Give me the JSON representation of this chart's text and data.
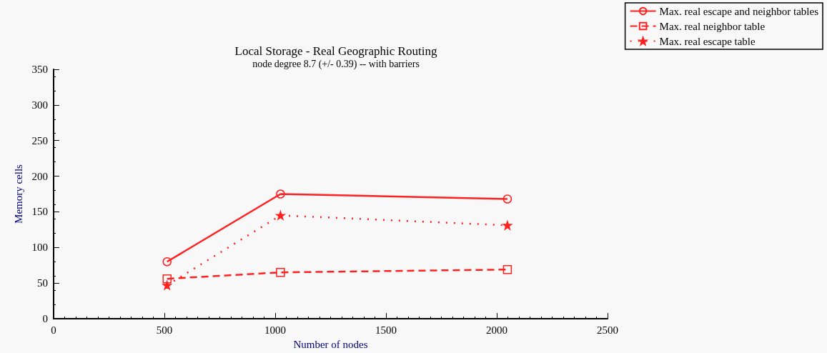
{
  "chart_data": {
    "type": "line",
    "title": "Local Storage - Real Geographic Routing",
    "subtitle": "node degree 8.7 (+/- 0.39) -- with barriers",
    "xlabel": "Number of nodes",
    "ylabel": "Memory cells",
    "x": [
      512,
      1024,
      2048
    ],
    "series": [
      {
        "name": "Max. real escape and neighbor tables",
        "color": "#ff2020",
        "values": [
          80,
          175,
          168
        ],
        "marker": "circle",
        "line_style": "solid"
      },
      {
        "name": "Max. real neighbor table",
        "color": "#ff2020",
        "values": [
          56,
          65,
          69
        ],
        "marker": "square",
        "line_style": "dashed"
      },
      {
        "name": "Max. real escape table",
        "color": "#ff2020",
        "values": [
          47,
          145,
          131
        ],
        "marker": "star",
        "line_style": "dotted"
      }
    ],
    "xlim": [
      0,
      2500
    ],
    "xticks": [
      0,
      500,
      1000,
      1500,
      2000,
      2500
    ],
    "ylim": [
      0,
      350
    ],
    "yticks": [
      0,
      50,
      100,
      150,
      200,
      250,
      300,
      350
    ],
    "grid": false,
    "legend": "top right"
  }
}
